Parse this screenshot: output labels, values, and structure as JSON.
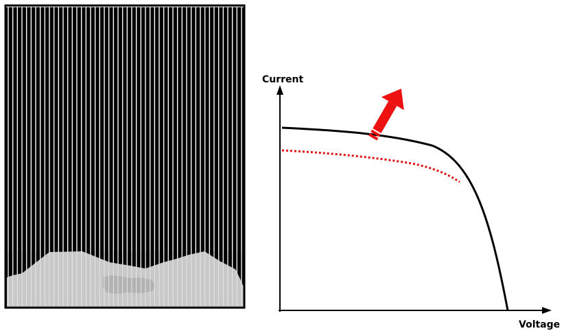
{
  "panel": {
    "cell_stripes": 52,
    "colors": {
      "cell_background": "#000000",
      "stripe": "#ffffff",
      "frame": "#000000",
      "snow": "#c8c8c8",
      "snow_clump": "#b0b0b0"
    }
  },
  "iv_chart": {
    "y_axis_label": "Current",
    "x_axis_label": "Voltage",
    "curves": [
      {
        "name": "",
        "style": "solid",
        "color": "#000000"
      },
      {
        "name": "",
        "style": "dotted",
        "color": "#e01010"
      }
    ],
    "arrow": {
      "icon": "down-left-arrow-icon",
      "color": "#ee1111"
    }
  }
}
